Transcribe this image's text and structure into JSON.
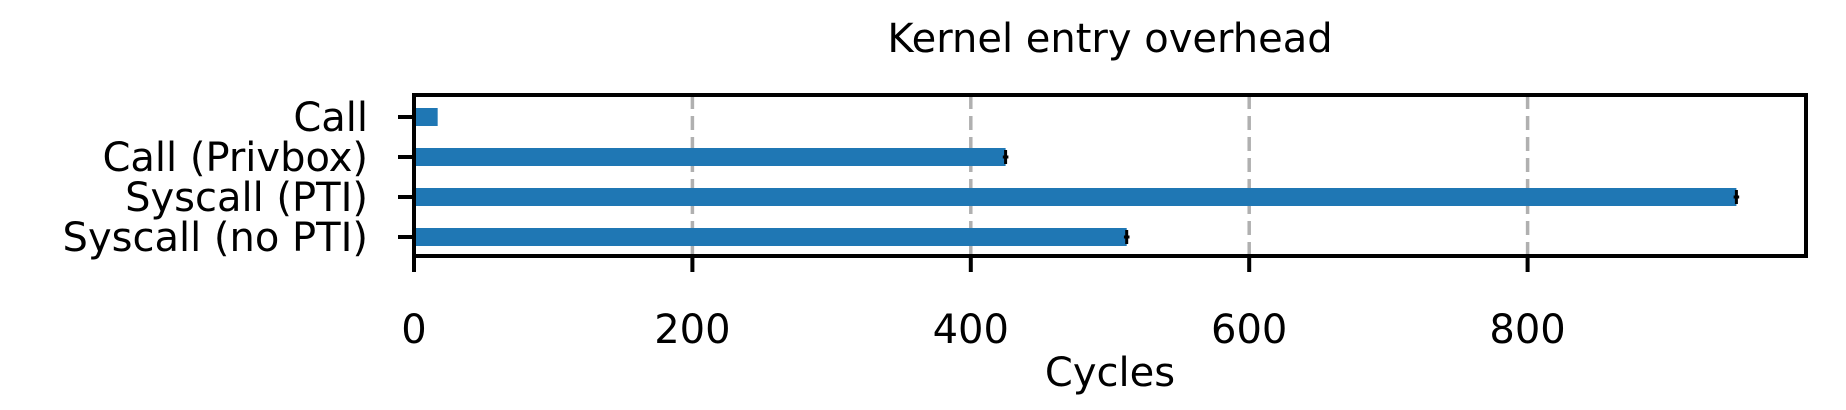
{
  "chart_data": {
    "type": "bar",
    "orientation": "horizontal",
    "title": "Kernel entry overhead",
    "xlabel": "Cycles",
    "ylabel": "",
    "xlim": [
      0,
      1000
    ],
    "xticks": [
      0,
      200,
      400,
      600,
      800
    ],
    "grid": "vertical dashed",
    "categories": [
      "Call",
      "Call (Privbox)",
      "Syscall (PTI)",
      "Syscall (no PTI)"
    ],
    "values": [
      17,
      425,
      950,
      512
    ],
    "errors": [
      0,
      2,
      2,
      2
    ],
    "colors": {
      "bar": "#1f77b4",
      "grid": "#b0b0b0",
      "error": "#000000"
    }
  }
}
